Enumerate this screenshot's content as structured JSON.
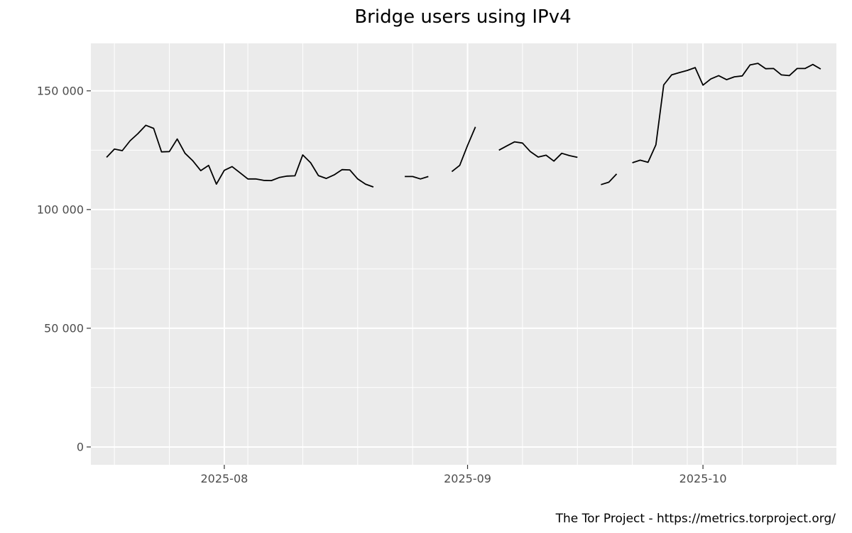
{
  "chart_data": {
    "type": "line",
    "title": "Bridge users using IPv4",
    "xlabel": "",
    "ylabel": "",
    "caption": "The Tor Project - https://metrics.torproject.org/",
    "x_range": [
      "2025-07-15",
      "2025-10-18"
    ],
    "ylim": [
      -7500,
      170000
    ],
    "y_ticks": [
      0,
      50000,
      100000,
      150000
    ],
    "y_tick_labels": [
      "0",
      "50 000",
      "100 000",
      "150 000"
    ],
    "x_ticks": [
      "2025-08-01",
      "2025-09-01",
      "2025-10-01"
    ],
    "x_tick_labels": [
      "2025-08",
      "2025-09",
      "2025-10"
    ],
    "x_minor_gridlines": [
      "2025-07-18",
      "2025-07-25",
      "2025-08-04",
      "2025-08-11",
      "2025-08-18",
      "2025-08-25",
      "2025-09-08",
      "2025-09-15",
      "2025-09-22",
      "2025-09-29",
      "2025-10-06",
      "2025-10-13"
    ],
    "grid": true,
    "panel_background": "#ebebeb",
    "grid_color": "#ffffff",
    "line_color": "#000000",
    "series": [
      {
        "points": [
          [
            "2025-07-17",
            122000
          ],
          [
            "2025-07-18",
            125500
          ],
          [
            "2025-07-19",
            124800
          ],
          [
            "2025-07-20",
            129000
          ],
          [
            "2025-07-21",
            132000
          ],
          [
            "2025-07-22",
            135500
          ],
          [
            "2025-07-23",
            134200
          ],
          [
            "2025-07-24",
            124300
          ],
          [
            "2025-07-25",
            124400
          ],
          [
            "2025-07-26",
            129700
          ],
          [
            "2025-07-27",
            123700
          ],
          [
            "2025-07-28",
            120500
          ],
          [
            "2025-07-29",
            116400
          ],
          [
            "2025-07-30",
            118600
          ],
          [
            "2025-07-31",
            110700
          ],
          [
            "2025-08-01",
            116500
          ],
          [
            "2025-08-02",
            118100
          ],
          [
            "2025-08-03",
            115500
          ],
          [
            "2025-08-04",
            112900
          ],
          [
            "2025-08-05",
            112900
          ],
          [
            "2025-08-06",
            112300
          ],
          [
            "2025-08-07",
            112200
          ],
          [
            "2025-08-08",
            113500
          ],
          [
            "2025-08-09",
            114100
          ],
          [
            "2025-08-10",
            114200
          ],
          [
            "2025-08-11",
            123000
          ],
          [
            "2025-08-12",
            119700
          ],
          [
            "2025-08-13",
            114300
          ],
          [
            "2025-08-14",
            113100
          ],
          [
            "2025-08-15",
            114600
          ],
          [
            "2025-08-16",
            116800
          ],
          [
            "2025-08-17",
            116700
          ],
          [
            "2025-08-18",
            112900
          ],
          [
            "2025-08-19",
            110700
          ],
          [
            "2025-08-20",
            109500
          ],
          [
            "2025-08-21",
            null
          ],
          [
            "2025-08-22",
            null
          ],
          [
            "2025-08-23",
            null
          ],
          [
            "2025-08-24",
            113900
          ],
          [
            "2025-08-25",
            113900
          ],
          [
            "2025-08-26",
            112900
          ],
          [
            "2025-08-27",
            113900
          ],
          [
            "2025-08-28",
            null
          ],
          [
            "2025-08-29",
            null
          ],
          [
            "2025-08-30",
            116000
          ],
          [
            "2025-08-31",
            118600
          ],
          [
            "2025-09-01",
            127000
          ],
          [
            "2025-09-02",
            134800
          ],
          [
            "2025-09-03",
            null
          ],
          [
            "2025-09-04",
            null
          ],
          [
            "2025-09-05",
            125000
          ],
          [
            "2025-09-06",
            126800
          ],
          [
            "2025-09-07",
            128500
          ],
          [
            "2025-09-08",
            128000
          ],
          [
            "2025-09-09",
            124400
          ],
          [
            "2025-09-10",
            122100
          ],
          [
            "2025-09-11",
            122900
          ],
          [
            "2025-09-12",
            120400
          ],
          [
            "2025-09-13",
            123700
          ],
          [
            "2025-09-14",
            122700
          ],
          [
            "2025-09-15",
            122000
          ],
          [
            "2025-09-16",
            null
          ],
          [
            "2025-09-17",
            null
          ],
          [
            "2025-09-18",
            110500
          ],
          [
            "2025-09-19",
            111500
          ],
          [
            "2025-09-20",
            115000
          ],
          [
            "2025-09-21",
            null
          ],
          [
            "2025-09-22",
            119700
          ],
          [
            "2025-09-23",
            120800
          ],
          [
            "2025-09-24",
            119900
          ],
          [
            "2025-09-25",
            127300
          ],
          [
            "2025-09-26",
            152500
          ],
          [
            "2025-09-27",
            156700
          ],
          [
            "2025-09-28",
            157700
          ],
          [
            "2025-09-29",
            158600
          ],
          [
            "2025-09-30",
            159800
          ],
          [
            "2025-10-01",
            152400
          ],
          [
            "2025-10-02",
            155000
          ],
          [
            "2025-10-03",
            156400
          ],
          [
            "2025-10-04",
            154700
          ],
          [
            "2025-10-05",
            155900
          ],
          [
            "2025-10-06",
            156300
          ],
          [
            "2025-10-07",
            160900
          ],
          [
            "2025-10-08",
            161600
          ],
          [
            "2025-10-09",
            159300
          ],
          [
            "2025-10-10",
            159400
          ],
          [
            "2025-10-11",
            156700
          ],
          [
            "2025-10-12",
            156400
          ],
          [
            "2025-10-13",
            159400
          ],
          [
            "2025-10-14",
            159400
          ],
          [
            "2025-10-15",
            161100
          ],
          [
            "2025-10-16",
            159200
          ]
        ]
      }
    ]
  }
}
